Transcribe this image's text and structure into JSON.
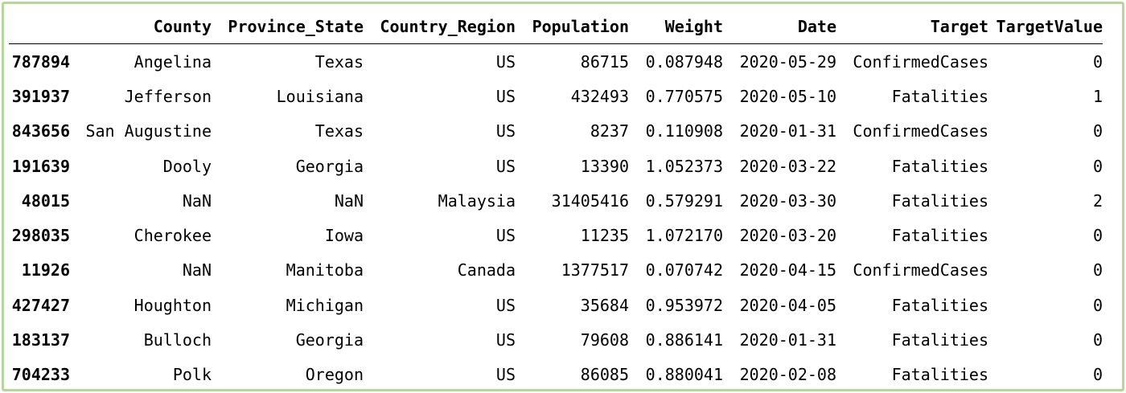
{
  "table": {
    "columns": [
      "",
      "County",
      "Province_State",
      "Country_Region",
      "Population",
      "Weight",
      "Date",
      "Target",
      "TargetValue"
    ],
    "rows": [
      {
        "index": "787894",
        "County": "Angelina",
        "Province_State": "Texas",
        "Country_Region": "US",
        "Population": "86715",
        "Weight": "0.087948",
        "Date": "2020-05-29",
        "Target": "ConfirmedCases",
        "TargetValue": "0"
      },
      {
        "index": "391937",
        "County": "Jefferson",
        "Province_State": "Louisiana",
        "Country_Region": "US",
        "Population": "432493",
        "Weight": "0.770575",
        "Date": "2020-05-10",
        "Target": "Fatalities",
        "TargetValue": "1"
      },
      {
        "index": "843656",
        "County": "San Augustine",
        "Province_State": "Texas",
        "Country_Region": "US",
        "Population": "8237",
        "Weight": "0.110908",
        "Date": "2020-01-31",
        "Target": "ConfirmedCases",
        "TargetValue": "0"
      },
      {
        "index": "191639",
        "County": "Dooly",
        "Province_State": "Georgia",
        "Country_Region": "US",
        "Population": "13390",
        "Weight": "1.052373",
        "Date": "2020-03-22",
        "Target": "Fatalities",
        "TargetValue": "0"
      },
      {
        "index": "48015",
        "County": "NaN",
        "Province_State": "NaN",
        "Country_Region": "Malaysia",
        "Population": "31405416",
        "Weight": "0.579291",
        "Date": "2020-03-30",
        "Target": "Fatalities",
        "TargetValue": "2"
      },
      {
        "index": "298035",
        "County": "Cherokee",
        "Province_State": "Iowa",
        "Country_Region": "US",
        "Population": "11235",
        "Weight": "1.072170",
        "Date": "2020-03-20",
        "Target": "Fatalities",
        "TargetValue": "0"
      },
      {
        "index": "11926",
        "County": "NaN",
        "Province_State": "Manitoba",
        "Country_Region": "Canada",
        "Population": "1377517",
        "Weight": "0.070742",
        "Date": "2020-04-15",
        "Target": "ConfirmedCases",
        "TargetValue": "0"
      },
      {
        "index": "427427",
        "County": "Houghton",
        "Province_State": "Michigan",
        "Country_Region": "US",
        "Population": "35684",
        "Weight": "0.953972",
        "Date": "2020-04-05",
        "Target": "Fatalities",
        "TargetValue": "0"
      },
      {
        "index": "183137",
        "County": "Bulloch",
        "Province_State": "Georgia",
        "Country_Region": "US",
        "Population": "79608",
        "Weight": "0.886141",
        "Date": "2020-01-31",
        "Target": "Fatalities",
        "TargetValue": "0"
      },
      {
        "index": "704233",
        "County": "Polk",
        "Province_State": "Oregon",
        "Country_Region": "US",
        "Population": "86085",
        "Weight": "0.880041",
        "Date": "2020-02-08",
        "Target": "Fatalities",
        "TargetValue": "0"
      }
    ]
  },
  "colors": {
    "frame_border": "#b7d79a",
    "text": "#000000",
    "background": "#ffffff"
  }
}
